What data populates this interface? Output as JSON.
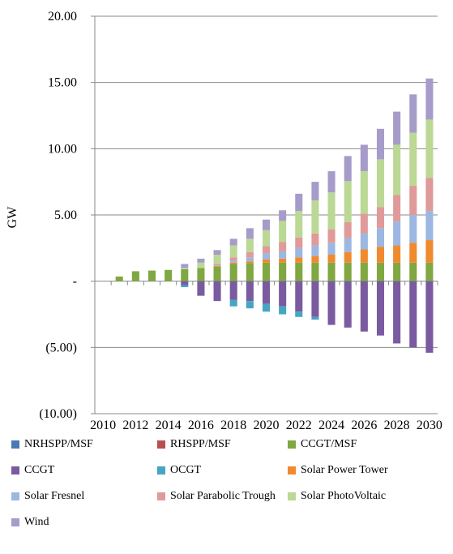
{
  "chart_data": {
    "type": "bar",
    "stacked": true,
    "ylabel": "GW",
    "ylim": [
      -10,
      20
    ],
    "yticks": [
      {
        "value": 20,
        "label": "20.00"
      },
      {
        "value": 15,
        "label": "15.00"
      },
      {
        "value": 10,
        "label": "10.00"
      },
      {
        "value": 5,
        "label": "5.00"
      },
      {
        "value": 0,
        "label": "-"
      },
      {
        "value": -5,
        "label": "(5.00)"
      },
      {
        "value": -10,
        "label": "(10.00)"
      }
    ],
    "xtick_labels": [
      "2010",
      "2012",
      "2014",
      "2016",
      "2018",
      "2020",
      "2022",
      "2024",
      "2026",
      "2028",
      "2030"
    ],
    "categories": [
      "2010",
      "2011",
      "2012",
      "2013",
      "2014",
      "2015",
      "2016",
      "2017",
      "2018",
      "2019",
      "2020",
      "2021",
      "2022",
      "2023",
      "2024",
      "2025",
      "2026",
      "2027",
      "2028",
      "2029",
      "2030"
    ],
    "legend_position": "bottom",
    "series": [
      {
        "name": "NRHSPP/MSF",
        "color": "#4a7ab5",
        "values": [
          0,
          0,
          0,
          0,
          0,
          0,
          0,
          0,
          0,
          0,
          0,
          0,
          0,
          0,
          0,
          0,
          0,
          0,
          0,
          0,
          0
        ]
      },
      {
        "name": "RHSPP/MSF",
        "color": "#b9504e",
        "values": [
          0,
          0,
          0,
          0,
          0,
          0,
          0,
          0,
          0,
          0,
          0,
          0,
          0,
          0,
          0,
          0,
          0,
          0,
          0,
          0,
          0
        ]
      },
      {
        "name": "CCGT/MSF",
        "color": "#7fa742",
        "values": [
          0,
          0.35,
          0.75,
          0.8,
          0.85,
          0.9,
          1.0,
          1.1,
          1.3,
          1.35,
          1.4,
          1.4,
          1.4,
          1.4,
          1.4,
          1.4,
          1.4,
          1.4,
          1.4,
          1.4,
          1.4
        ]
      },
      {
        "name": "CCGT",
        "color": "#7a5ba0",
        "values": [
          0,
          0,
          0,
          0,
          0,
          -0.3,
          -1.1,
          -1.5,
          -1.4,
          -1.5,
          -1.7,
          -1.9,
          -2.3,
          -2.7,
          -3.3,
          -3.5,
          -3.8,
          -4.1,
          -4.7,
          -5.0,
          -5.4
        ]
      },
      {
        "name": "OCGT",
        "color": "#45a6c3",
        "values": [
          0,
          0,
          0,
          0,
          0,
          -0.15,
          0,
          0,
          -0.5,
          -0.55,
          -0.6,
          -0.6,
          -0.4,
          -0.2,
          0,
          0,
          0,
          0,
          0,
          0,
          0
        ]
      },
      {
        "name": "Solar Power Tower",
        "color": "#f08a2e",
        "values": [
          0,
          0,
          0,
          0,
          0,
          0,
          0,
          0.05,
          0.1,
          0.15,
          0.25,
          0.3,
          0.4,
          0.5,
          0.6,
          0.8,
          1.0,
          1.2,
          1.3,
          1.5,
          1.7
        ]
      },
      {
        "name": "Solar Fresnel",
        "color": "#9cb7e1",
        "values": [
          0,
          0,
          0,
          0,
          0,
          0,
          0,
          0.05,
          0.15,
          0.3,
          0.45,
          0.55,
          0.7,
          0.8,
          0.9,
          1.05,
          1.2,
          1.4,
          1.8,
          2.1,
          2.2
        ]
      },
      {
        "name": "Solar Parabolic Trough",
        "color": "#e09a9a",
        "values": [
          0,
          0,
          0,
          0,
          0,
          0,
          0,
          0.1,
          0.25,
          0.4,
          0.55,
          0.7,
          0.8,
          0.9,
          1.0,
          1.2,
          1.5,
          1.6,
          2.0,
          2.2,
          2.5
        ]
      },
      {
        "name": "Solar PhotoVoltaic",
        "color": "#bcd895",
        "values": [
          0,
          0,
          0,
          0,
          0,
          0.1,
          0.4,
          0.7,
          0.9,
          1.0,
          1.2,
          1.6,
          2.0,
          2.5,
          2.8,
          3.1,
          3.2,
          3.6,
          3.8,
          4.0,
          4.4
        ]
      },
      {
        "name": "Wind",
        "color": "#a69cc9",
        "values": [
          0,
          0,
          0,
          0,
          0,
          0.3,
          0.3,
          0.35,
          0.5,
          0.8,
          0.8,
          0.8,
          1.3,
          1.4,
          1.6,
          1.9,
          2.0,
          2.3,
          2.5,
          2.9,
          3.1
        ]
      }
    ]
  }
}
